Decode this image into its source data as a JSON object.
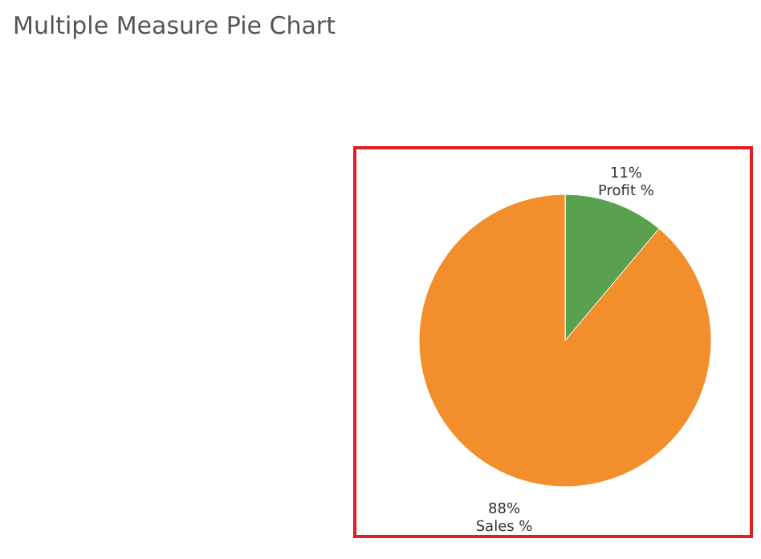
{
  "chart_data": {
    "type": "pie",
    "title": "Multiple Measure Pie Chart",
    "categories": [
      "Profit %",
      "Sales %"
    ],
    "values": [
      11,
      88
    ],
    "colors": [
      "#59a14f",
      "#f28e2b"
    ],
    "value_labels": [
      "11%",
      "88%"
    ]
  }
}
